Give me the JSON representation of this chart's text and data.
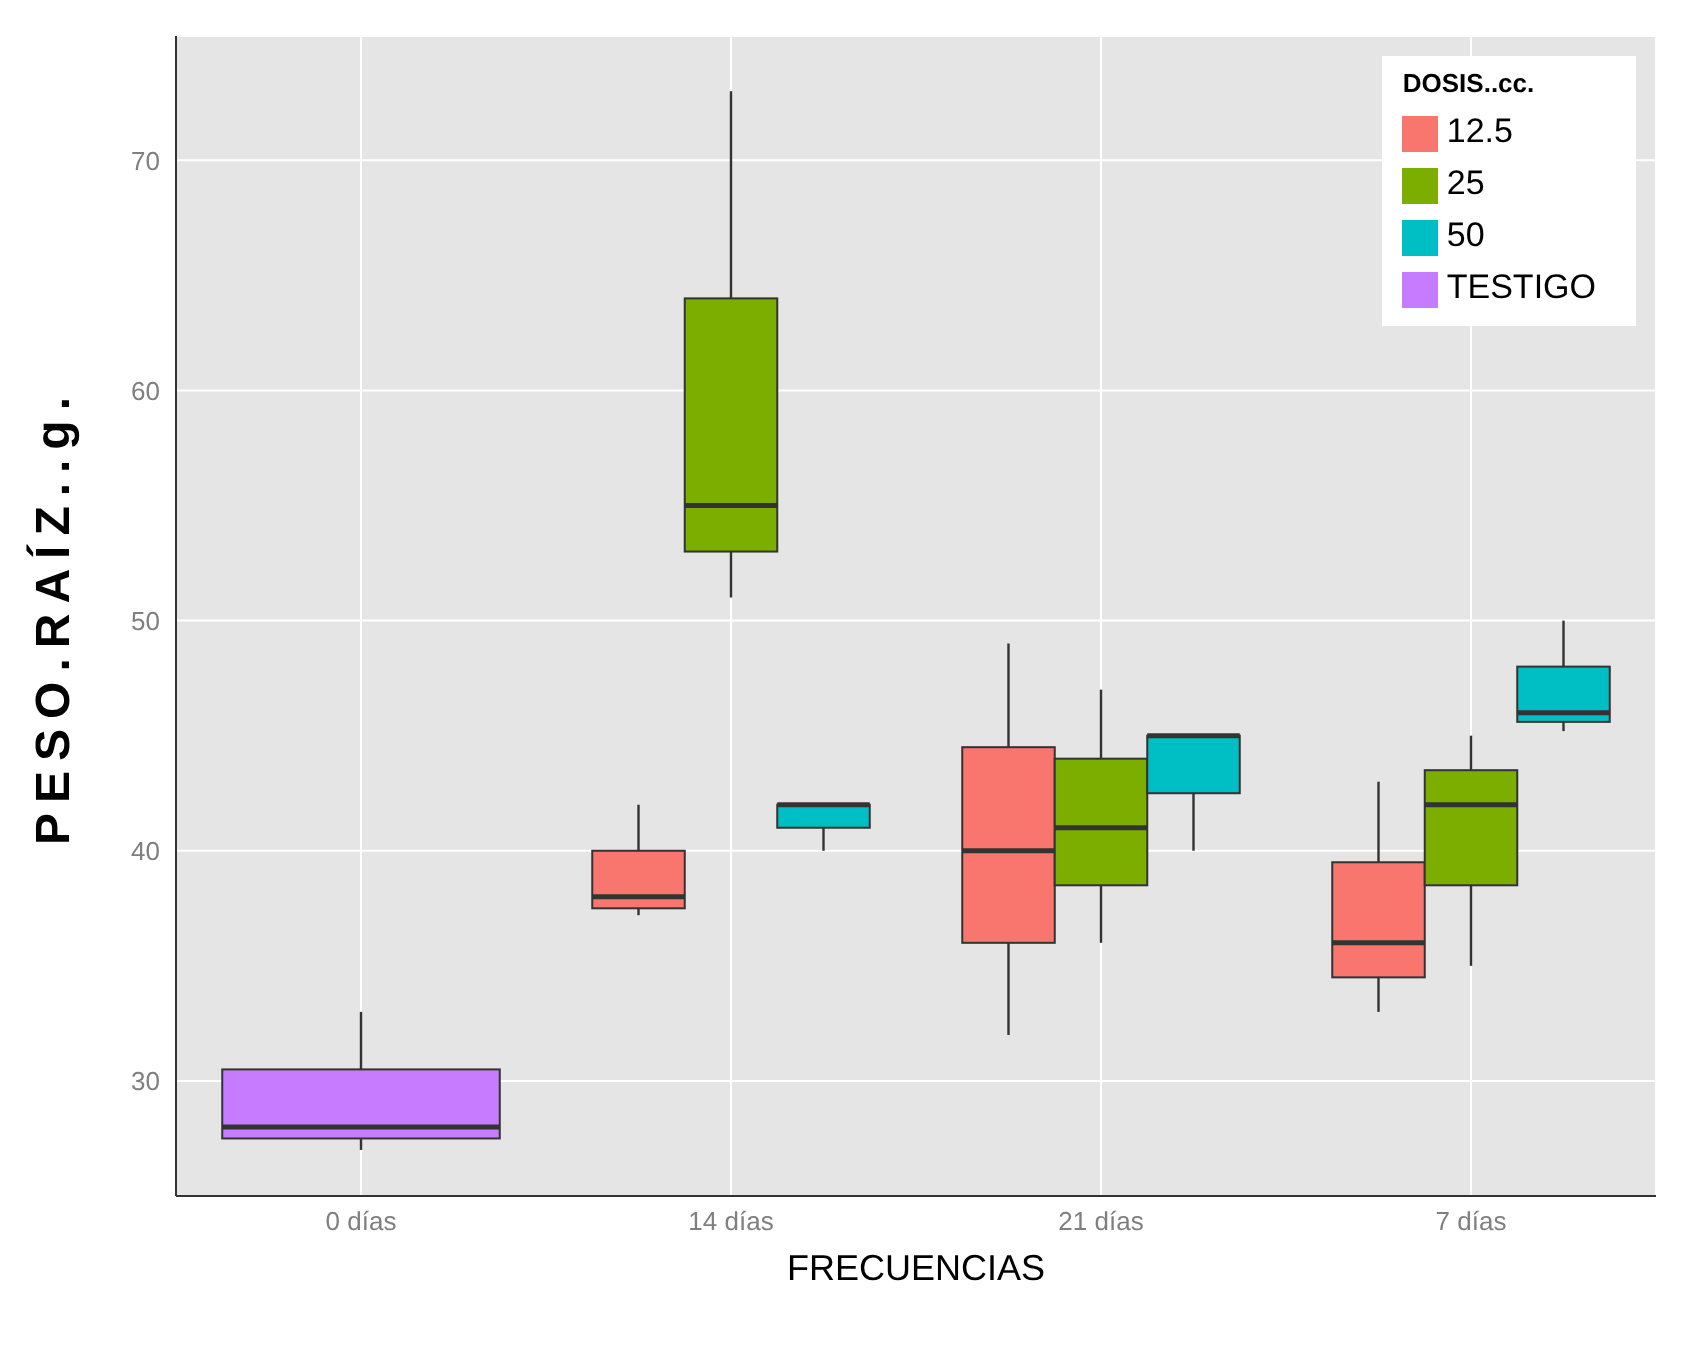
{
  "chart_data": {
    "type": "box",
    "xlabel": "FRECUENCIAS",
    "ylabel": "PESO.RAÍZ..g.",
    "legend_title": "DOSIS..cc.",
    "categories": [
      "0 días",
      "14 días",
      "21 días",
      "7 días"
    ],
    "series": [
      {
        "name": "12.5",
        "color": "#f8766d",
        "boxes": [
          null,
          {
            "low": 37.2,
            "q1": 37.5,
            "median": 38,
            "q3": 40,
            "high": 42
          },
          {
            "low": 32,
            "q1": 36,
            "median": 40,
            "q3": 44.5,
            "high": 49
          },
          {
            "low": 33,
            "q1": 34.5,
            "median": 36,
            "q3": 39.5,
            "high": 43
          }
        ]
      },
      {
        "name": "25",
        "color": "#7cae00",
        "boxes": [
          null,
          {
            "low": 51,
            "q1": 53,
            "median": 55,
            "q3": 64,
            "high": 73
          },
          {
            "low": 36,
            "q1": 38.5,
            "median": 41,
            "q3": 44,
            "high": 47
          },
          {
            "low": 35,
            "q1": 38.5,
            "median": 42,
            "q3": 43.5,
            "high": 45
          }
        ]
      },
      {
        "name": "50",
        "color": "#00bfc4",
        "boxes": [
          null,
          {
            "low": 40,
            "q1": 41,
            "median": 42,
            "q3": 42,
            "high": 42
          },
          {
            "low": 40,
            "q1": 42.5,
            "median": 45,
            "q3": 45,
            "high": 45
          },
          {
            "low": 45.2,
            "q1": 45.6,
            "median": 46,
            "q3": 48,
            "high": 50
          }
        ]
      },
      {
        "name": "TESTIGO",
        "color": "#c77cff",
        "boxes": [
          {
            "low": 27,
            "q1": 27.5,
            "median": 28,
            "q3": 30.5,
            "high": 33
          },
          null,
          null,
          null
        ]
      }
    ],
    "ylim": [
      25,
      75.4
    ],
    "yticks": [
      30,
      40,
      50,
      60,
      70
    ],
    "grid": true,
    "legend": "top right"
  }
}
